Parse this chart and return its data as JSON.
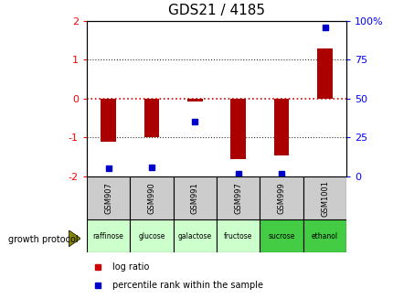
{
  "title": "GDS21 / 4185",
  "samples": [
    "GSM907",
    "GSM990",
    "GSM991",
    "GSM997",
    "GSM999",
    "GSM1001"
  ],
  "protocols": [
    "raffinose",
    "glucose",
    "galactose",
    "fructose",
    "sucrose",
    "ethanol"
  ],
  "log_ratios": [
    -1.1,
    -1.0,
    -0.07,
    -1.55,
    -1.45,
    1.3
  ],
  "percentile_ranks": [
    5,
    6,
    35,
    2,
    2,
    96
  ],
  "ylim_left": [
    -2,
    2
  ],
  "ylim_right": [
    0,
    100
  ],
  "yticks_left": [
    -2,
    -1,
    0,
    1,
    2
  ],
  "yticks_right": [
    0,
    25,
    50,
    75,
    100
  ],
  "bar_color": "#aa0000",
  "point_color": "#0000cc",
  "hline_color_zero": "#cc0000",
  "hline_color_dotted": "#333333",
  "background_header": "#cccccc",
  "background_protocol_light": "#ccffcc",
  "background_protocol_dark": "#44cc44",
  "protocol_bg": [
    "#ccffcc",
    "#ccffcc",
    "#ccffcc",
    "#ccffcc",
    "#44cc44",
    "#44cc44"
  ],
  "title_fontsize": 11,
  "legend_log_ratio_color": "#cc0000",
  "legend_percentile_color": "#0000cc",
  "arrow_color": "#888800"
}
